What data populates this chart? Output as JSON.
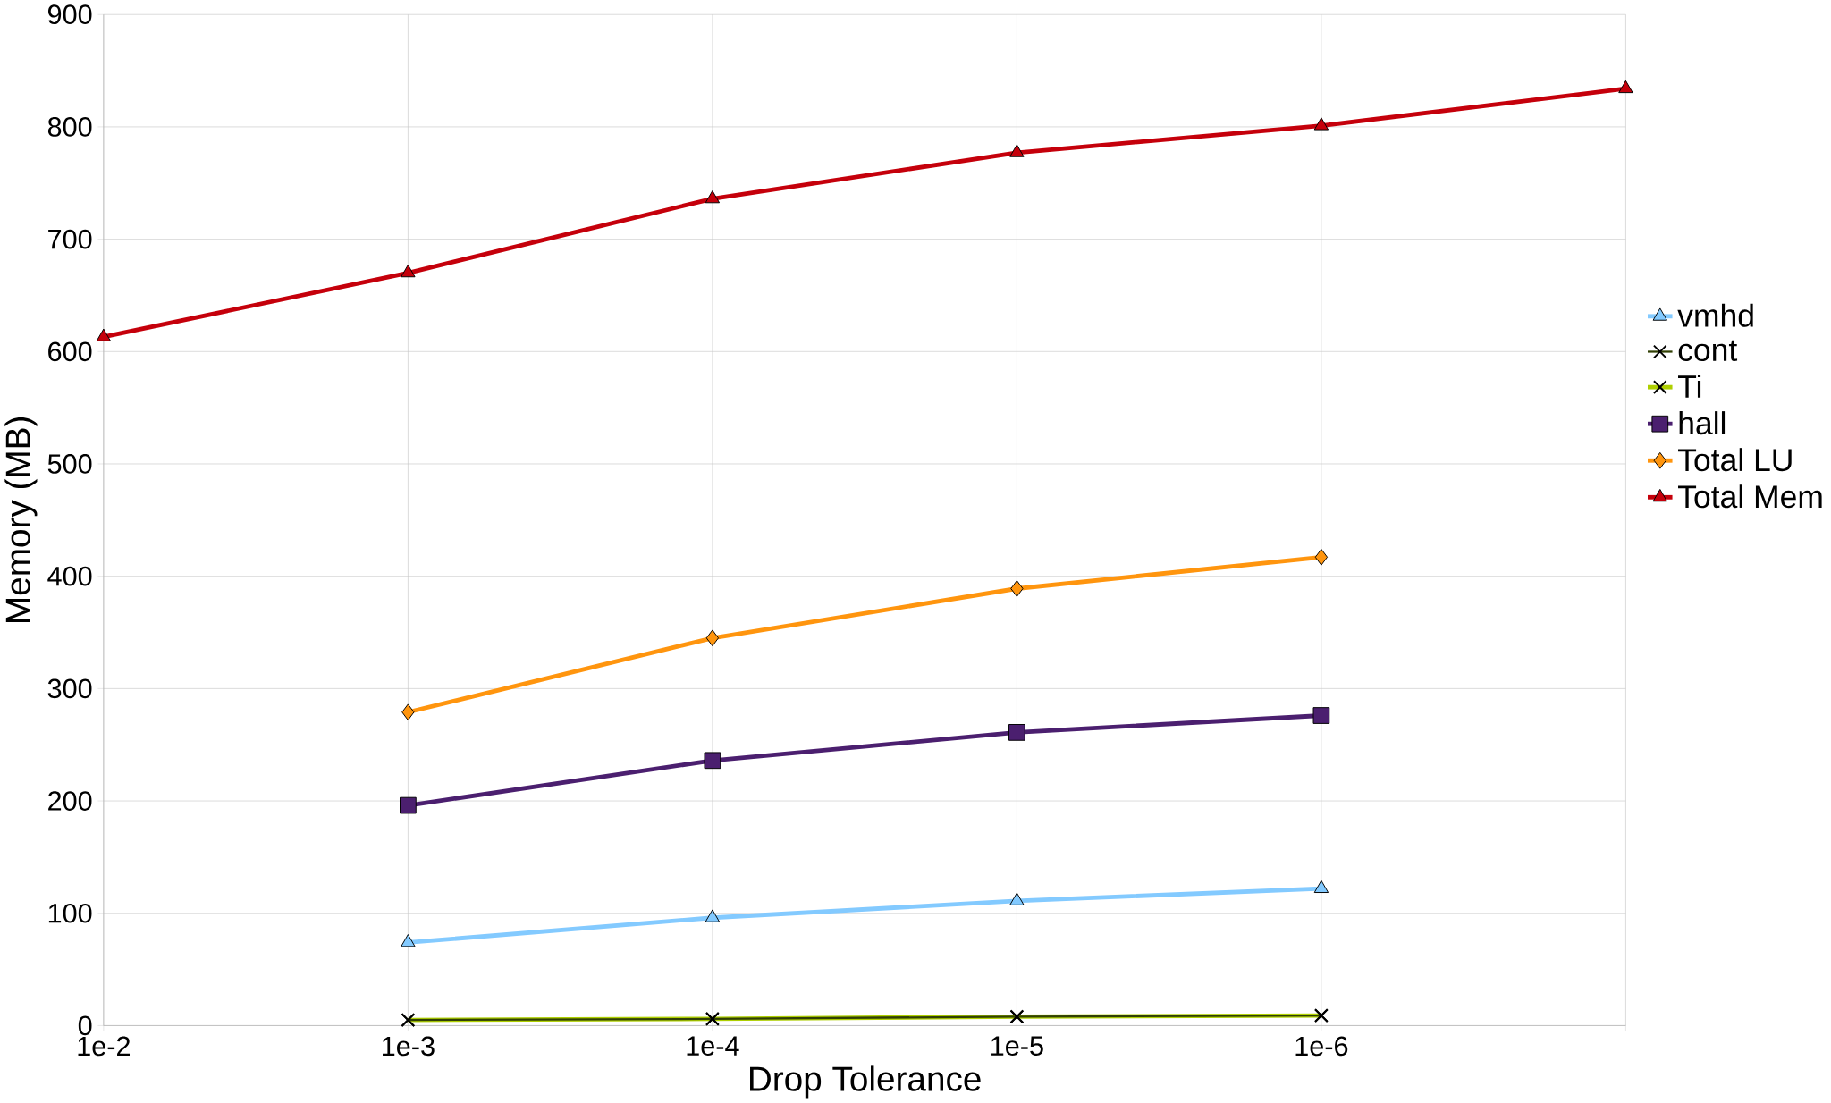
{
  "chart_data": {
    "type": "line",
    "xlabel": "Drop Tolerance",
    "ylabel": "Memory (MB)",
    "categories": [
      "1e-2",
      "1e-3",
      "1e-4",
      "1e-5",
      "1e-6",
      null
    ],
    "ylim": [
      0,
      900
    ],
    "yticks": [
      0,
      100,
      200,
      300,
      400,
      500,
      600,
      700,
      800,
      900
    ],
    "grid": true,
    "legend": "right",
    "series": [
      {
        "name": "vmhd",
        "color": "#83caff",
        "marker": "triangle",
        "values": [
          null,
          74,
          96,
          111,
          122,
          null
        ]
      },
      {
        "name": "cont",
        "color": "#314004",
        "marker": "cross",
        "values": [
          null,
          5,
          6,
          8,
          9,
          null
        ]
      },
      {
        "name": "Ti",
        "color": "#aecf00",
        "marker": "cross",
        "values": [
          null,
          5,
          6,
          8,
          9,
          null
        ]
      },
      {
        "name": "hall",
        "color": "#4b1f6f",
        "marker": "square",
        "values": [
          null,
          196,
          236,
          261,
          276,
          null
        ]
      },
      {
        "name": "Total LU",
        "color": "#ff950e",
        "marker": "diamond",
        "values": [
          null,
          279,
          345,
          389,
          417,
          null
        ]
      },
      {
        "name": "Total Mem",
        "color": "#c5000b",
        "marker": "triangle",
        "values": [
          613,
          670,
          736,
          777,
          801,
          834
        ]
      }
    ]
  }
}
